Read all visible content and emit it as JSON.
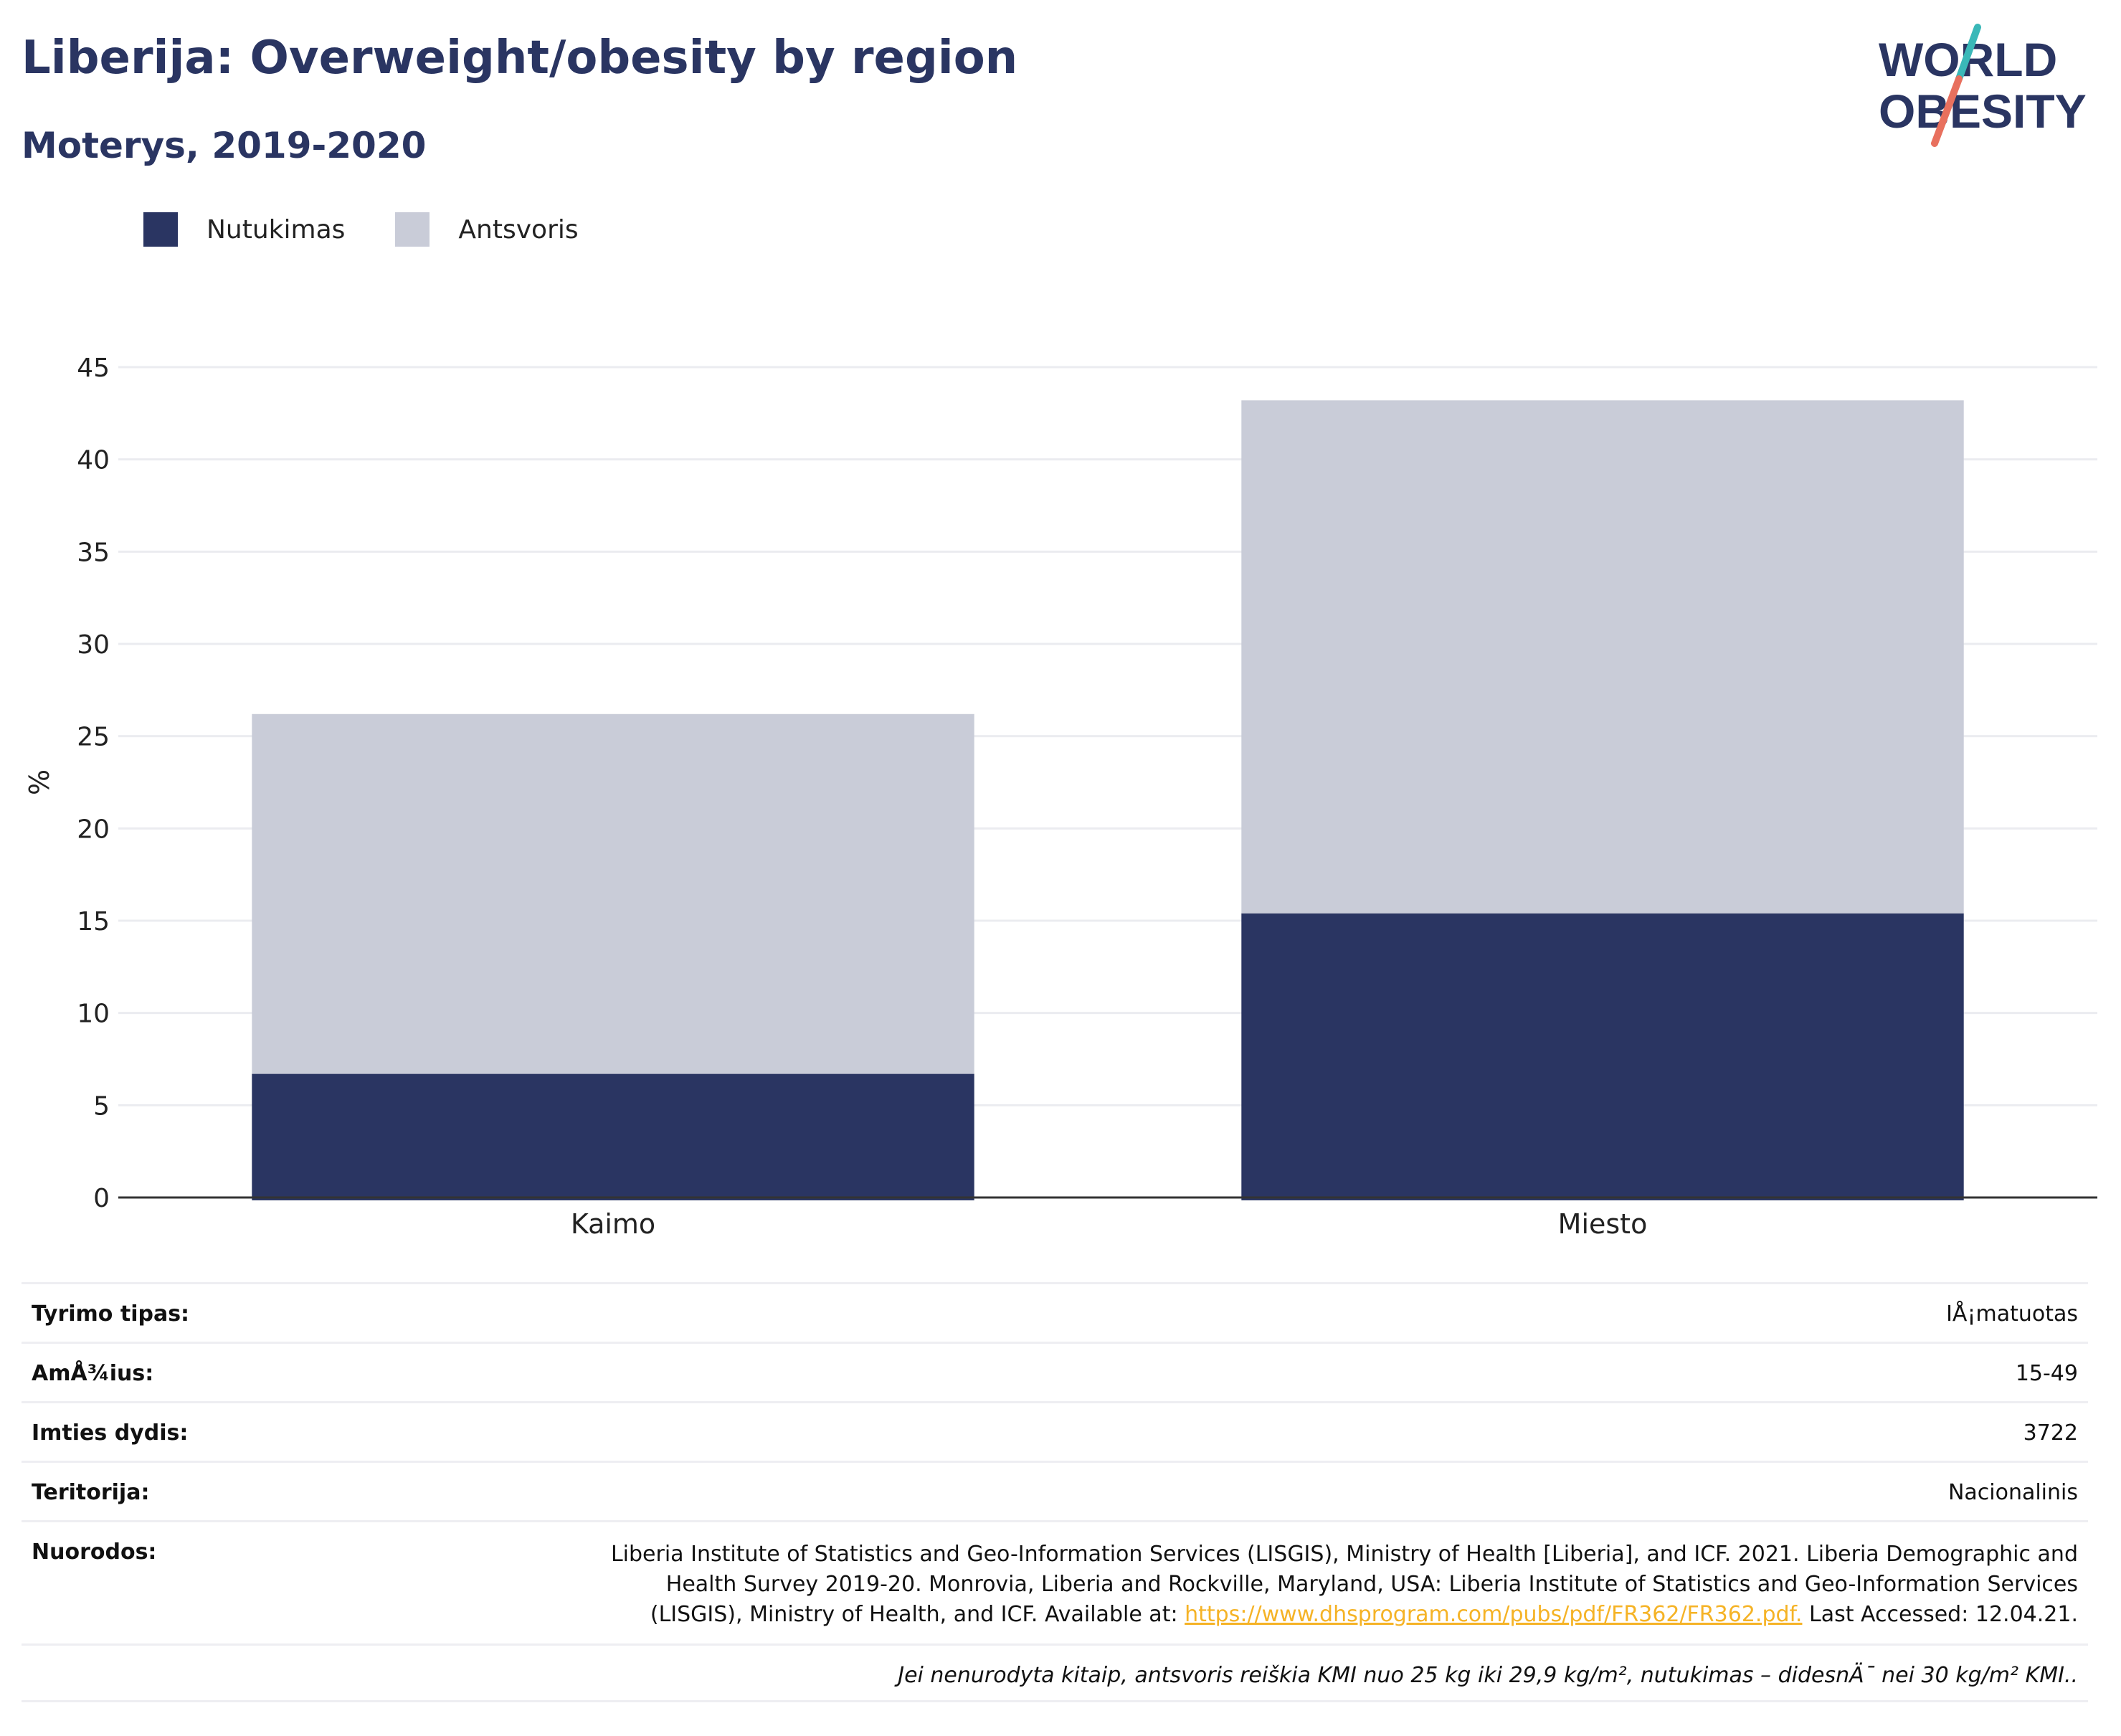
{
  "header": {
    "title": "Liberija: Overweight/obesity by region",
    "subtitle": "Moterys, 2019-2020",
    "logo_line1": "WORLD",
    "logo_line2": "OBESITY"
  },
  "colors": {
    "obesity": "#2a3562",
    "overweight": "#c9ccd8",
    "accent_teal": "#3ab8b8",
    "accent_red": "#e8705e",
    "link": "#f5b326"
  },
  "legend": [
    {
      "label": "Nutukimas",
      "color": "#2a3562"
    },
    {
      "label": "Antsvoris",
      "color": "#c9ccd8"
    }
  ],
  "chart_data": {
    "type": "bar",
    "stacked": true,
    "categories": [
      "Kaimo",
      "Miesto"
    ],
    "series": [
      {
        "name": "Nutukimas",
        "values": [
          6.7,
          15.4
        ]
      },
      {
        "name": "Antsvoris",
        "values": [
          19.5,
          27.8
        ]
      }
    ],
    "ylabel": "%",
    "ylim": [
      0,
      45
    ],
    "yticks": [
      "0",
      "5",
      "10",
      "15",
      "20",
      "25",
      "30",
      "35",
      "40",
      "45"
    ],
    "grid": true
  },
  "info": {
    "rows": [
      {
        "label": "Tyrimo tipas:",
        "value": "IÅ¡matuotas"
      },
      {
        "label": "AmÅ¾ius:",
        "value": "15-49"
      },
      {
        "label": "Imties dydis:",
        "value": "3722"
      },
      {
        "label": "Teritorija:",
        "value": "Nacionalinis"
      }
    ],
    "references_label": "Nuorodos:",
    "references_line1": "Liberia Institute of Statistics and Geo-Information Services (LISGIS), Ministry of Health [Liberia], and ICF. 2021. Liberia Demographic and",
    "references_line2": "Health Survey 2019-20. Monrovia, Liberia and Rockville, Maryland, USA: Liberia Institute of Statistics and Geo-Information Services",
    "references_line3_pre": "(LISGIS), Ministry of Health, and ICF. Available at: ",
    "references_link": "https://www.dhsprogram.com/pubs/pdf/FR362/FR362.pdf.",
    "references_line3_post": " Last Accessed: 12.04.21.",
    "note": "Jei nenurodyta kitaip, antsvoris reiškia KMI nuo 25 kg iki 29,9 kg/m², nutukimas – didesnÄ¯ nei 30 kg/m² KMI.."
  }
}
